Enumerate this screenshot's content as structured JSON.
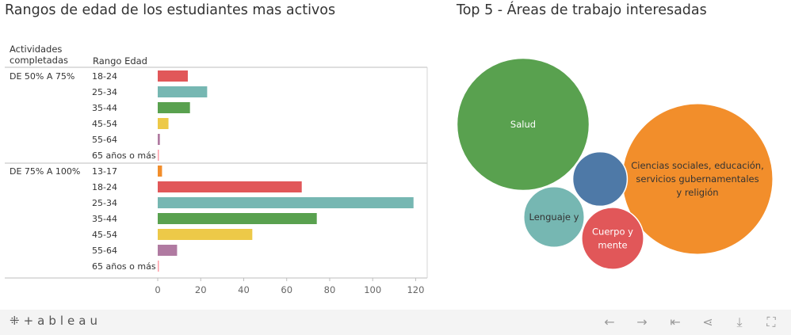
{
  "titles": {
    "left": "Rangos de edad de los estudiantes mas activos",
    "right": "Top 5 - Áreas de trabajo interesadas"
  },
  "headers": {
    "col1": "Actividades completadas",
    "col2": "Rango Edad"
  },
  "chart_data": [
    {
      "type": "bar",
      "orientation": "horizontal",
      "title": "Rangos de edad de los estudiantes mas activos",
      "xlabel": "",
      "ylabel": "Rango Edad",
      "xlim": [
        0,
        125
      ],
      "xticks": [
        0,
        20,
        40,
        60,
        80,
        100,
        120
      ],
      "groups": [
        {
          "name": "DE 50% A 75%",
          "categories": [
            "18-24",
            "25-34",
            "35-44",
            "45-54",
            "55-64",
            "65 años o más"
          ],
          "values": [
            14,
            23,
            15,
            5,
            1,
            0.5
          ]
        },
        {
          "name": "DE 75% A 100%",
          "categories": [
            "13-17",
            "18-24",
            "25-34",
            "35-44",
            "45-54",
            "55-64",
            "65 años o más"
          ],
          "values": [
            2,
            67,
            119,
            74,
            44,
            9,
            0.5
          ]
        }
      ],
      "category_colors": {
        "13-17": "#F28E2B",
        "18-24": "#E15759",
        "25-34": "#76B7B2",
        "35-44": "#59A14F",
        "45-54": "#EDC948",
        "55-64": "#B07AA1",
        "65 años o más": "#FF9DA7"
      }
    },
    {
      "type": "bubble",
      "title": "Top 5 - Áreas de trabajo interesadas",
      "items": [
        {
          "label": [
            "Salud"
          ],
          "value": 100,
          "color": "#59A14F"
        },
        {
          "label": [
            "Ciencias sociales, educación,",
            "servicios gubernamentales",
            "y religión"
          ],
          "value": 130,
          "color": "#F28E2B"
        },
        {
          "label": [],
          "value": 17,
          "color": "#4E79A7"
        },
        {
          "label": [
            "Lenguaje y"
          ],
          "value": 21,
          "color": "#76B7B2"
        },
        {
          "label": [
            "Cuerpo y",
            "mente"
          ],
          "value": 22,
          "color": "#E15759"
        }
      ]
    }
  ],
  "footer": {
    "logo": "+ableau",
    "icons": [
      "back-arrow-icon",
      "forward-arrow-icon",
      "first-page-icon",
      "share-icon",
      "download-icon",
      "fullscreen-icon"
    ]
  }
}
